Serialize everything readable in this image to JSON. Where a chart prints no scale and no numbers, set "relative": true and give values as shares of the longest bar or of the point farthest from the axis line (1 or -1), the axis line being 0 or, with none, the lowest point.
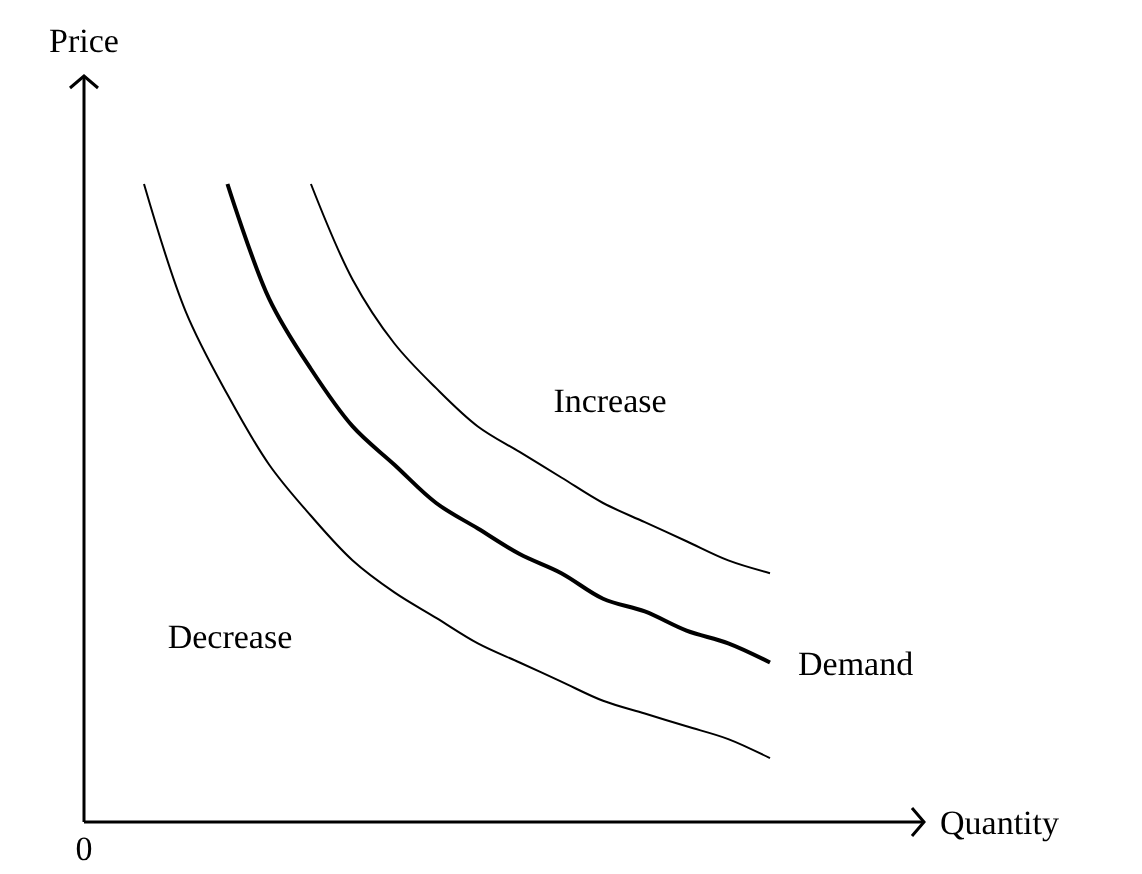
{
  "chart_data": {
    "type": "line",
    "relative": true,
    "xlabel": "Quantity",
    "ylabel": "Price",
    "categories": [
      null,
      null,
      null,
      null,
      null,
      null,
      null,
      null,
      null,
      null,
      null,
      null,
      null,
      null,
      null,
      null
    ],
    "series": [
      {
        "color": "#000000",
        "values": [
          1.0,
          0.8,
          0.67,
          0.56,
          0.48,
          0.41,
          0.36,
          0.32,
          0.28,
          0.25,
          0.22,
          0.19,
          0.17,
          0.15,
          0.13,
          0.1
        ]
      },
      {
        "name": "Demand",
        "color": "#000000",
        "values": [
          null,
          null,
          1.0,
          0.82,
          0.71,
          0.62,
          0.56,
          0.5,
          0.46,
          0.42,
          0.39,
          0.35,
          0.33,
          0.3,
          0.28,
          0.25
        ]
      },
      {
        "color": "#000000",
        "values": [
          null,
          null,
          null,
          null,
          1.0,
          0.85,
          0.75,
          0.68,
          0.62,
          0.58,
          0.54,
          0.5,
          0.47,
          0.44,
          0.41,
          0.39
        ]
      }
    ],
    "annotations": [
      "Increase",
      "Decrease",
      "0"
    ]
  }
}
